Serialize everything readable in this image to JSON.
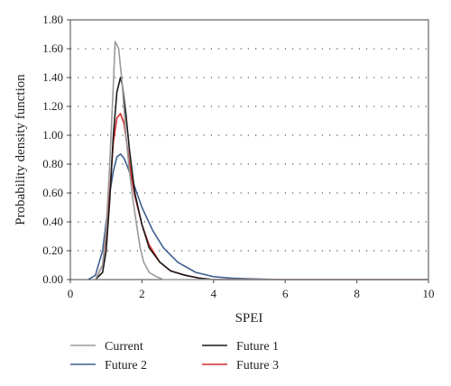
{
  "chart_data": {
    "type": "line",
    "xlabel": "SPEI",
    "ylabel": "Probability density function",
    "xlim": [
      0,
      10
    ],
    "ylim": [
      0,
      1.8
    ],
    "x_ticks": [
      "0",
      "2",
      "4",
      "6",
      "8",
      "10"
    ],
    "y_ticks": [
      "0.00",
      "0.20",
      "0.40",
      "0.60",
      "0.80",
      "1.00",
      "1.20",
      "1.40",
      "1.60",
      "1.80"
    ],
    "grid": "horizontal-dotted",
    "legend_position": "bottom",
    "series": [
      {
        "name": "Current",
        "color": "#9a9a9a",
        "x": [
          0.7,
          0.9,
          1.0,
          1.1,
          1.2,
          1.25,
          1.35,
          1.45,
          1.55,
          1.65,
          1.75,
          1.85,
          1.95,
          2.05,
          2.2,
          2.4,
          2.6,
          3.0,
          10.0
        ],
        "y": [
          0.0,
          0.1,
          0.35,
          0.8,
          1.35,
          1.65,
          1.6,
          1.35,
          1.0,
          0.75,
          0.55,
          0.38,
          0.22,
          0.12,
          0.05,
          0.02,
          0.0,
          0.0,
          0.0
        ]
      },
      {
        "name": "Future 1",
        "color": "#1a1a1a",
        "x": [
          0.7,
          0.9,
          1.0,
          1.1,
          1.2,
          1.3,
          1.4,
          1.45,
          1.55,
          1.65,
          1.8,
          2.0,
          2.2,
          2.5,
          2.8,
          3.2,
          3.6,
          4.0,
          10.0
        ],
        "y": [
          0.0,
          0.05,
          0.2,
          0.55,
          1.0,
          1.3,
          1.4,
          1.35,
          1.15,
          0.9,
          0.6,
          0.38,
          0.22,
          0.12,
          0.06,
          0.03,
          0.01,
          0.0,
          0.0
        ]
      },
      {
        "name": "Future 2",
        "color": "#3f5f8f",
        "x": [
          0.5,
          0.7,
          0.9,
          1.0,
          1.1,
          1.2,
          1.3,
          1.4,
          1.5,
          1.6,
          1.8,
          2.0,
          2.3,
          2.6,
          3.0,
          3.5,
          4.0,
          4.5,
          5.0,
          6.0,
          7.0,
          10.0
        ],
        "y": [
          0.0,
          0.03,
          0.2,
          0.4,
          0.6,
          0.75,
          0.85,
          0.87,
          0.84,
          0.78,
          0.64,
          0.5,
          0.34,
          0.22,
          0.12,
          0.05,
          0.02,
          0.01,
          0.005,
          0.0,
          0.0,
          0.0
        ]
      },
      {
        "name": "Future 3",
        "color": "#d62b2b",
        "x": [
          0.7,
          0.9,
          1.0,
          1.1,
          1.2,
          1.3,
          1.4,
          1.5,
          1.6,
          1.7,
          1.8,
          2.0,
          2.2,
          2.5,
          2.8,
          3.2,
          3.6,
          4.0,
          10.0
        ],
        "y": [
          0.0,
          0.1,
          0.3,
          0.6,
          0.95,
          1.12,
          1.15,
          1.08,
          0.9,
          0.72,
          0.58,
          0.38,
          0.24,
          0.12,
          0.06,
          0.03,
          0.01,
          0.0,
          0.0
        ]
      }
    ]
  }
}
